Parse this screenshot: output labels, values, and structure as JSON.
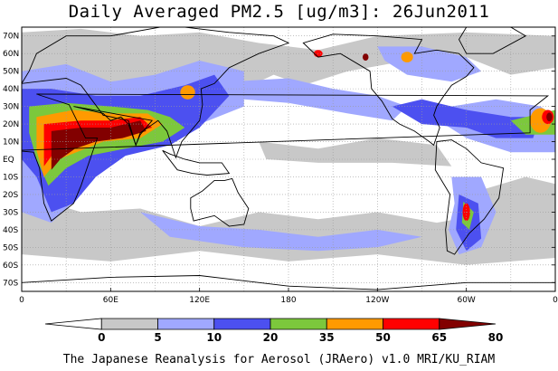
{
  "title": "Daily Averaged PM2.5 [ug/m3]: 26Jun2011",
  "footer": "The Japanese Reanalysis for Aerosol (JRAero) v1.0 MRI/KU_RIAM",
  "map": {
    "projection": "equirectangular",
    "lon_range": [
      0,
      360
    ],
    "lat_range": [
      -75,
      75
    ],
    "lat_ticks": [
      {
        "lat": 70,
        "label": "70N"
      },
      {
        "lat": 60,
        "label": "60N"
      },
      {
        "lat": 50,
        "label": "50N"
      },
      {
        "lat": 40,
        "label": "40N"
      },
      {
        "lat": 30,
        "label": "30N"
      },
      {
        "lat": 20,
        "label": "20N"
      },
      {
        "lat": 10,
        "label": "10N"
      },
      {
        "lat": 0,
        "label": "EQ"
      },
      {
        "lat": -10,
        "label": "10S"
      },
      {
        "lat": -20,
        "label": "20S"
      },
      {
        "lat": -30,
        "label": "30S"
      },
      {
        "lat": -40,
        "label": "40S"
      },
      {
        "lat": -50,
        "label": "50S"
      },
      {
        "lat": -60,
        "label": "60S"
      },
      {
        "lat": -70,
        "label": "70S"
      }
    ],
    "lon_ticks": [
      {
        "lon": 0,
        "label": "0"
      },
      {
        "lon": 60,
        "label": "60E"
      },
      {
        "lon": 120,
        "label": "120E"
      },
      {
        "lon": 180,
        "label": "180"
      },
      {
        "lon": 240,
        "label": "120W"
      },
      {
        "lon": 300,
        "label": "60W"
      },
      {
        "lon": 360,
        "label": "0"
      }
    ]
  },
  "colorbar": {
    "levels": [
      0,
      5,
      10,
      20,
      35,
      50,
      65,
      80
    ],
    "colors": [
      "#ffffff",
      "#c8c8c8",
      "#a0a8ff",
      "#4c50f0",
      "#7cc83c",
      "#ff9a00",
      "#ff0000",
      "#820000"
    ]
  }
}
